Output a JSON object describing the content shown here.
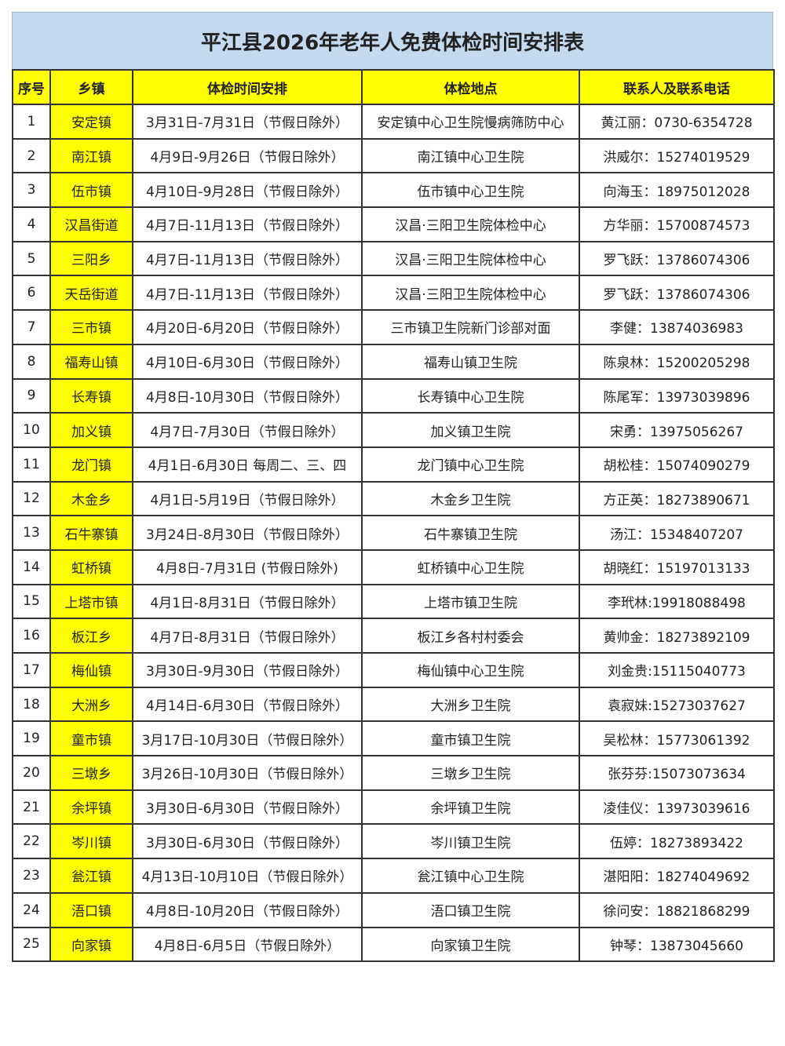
{
  "title": "平江县2026年老年人免费体检时间安排表",
  "headers": [
    "序号",
    "乡镇",
    "体检时间安排",
    "体检地点",
    "联系人及联系电话"
  ],
  "colors": {
    "title_bg": "#c5d9ef",
    "highlight": "#ffff00",
    "border": "#333333"
  },
  "rows": [
    [
      "1",
      "安定镇",
      "3月31日-7月31日（节假日除外）",
      "安定镇中心卫生院慢病筛防中心",
      "黄江丽：0730-6354728"
    ],
    [
      "2",
      "南江镇",
      "4月9日-9月26日（节假日除外）",
      "南江镇中心卫生院",
      "洪威尔：15274019529"
    ],
    [
      "3",
      "伍市镇",
      "4月10日-9月28日（节假日除外）",
      "伍市镇中心卫生院",
      "向海玉：18975012028"
    ],
    [
      "4",
      "汉昌街道",
      "4月7日-11月13日（节假日除外）",
      "汉昌·三阳卫生院体检中心",
      "方华丽：15700874573"
    ],
    [
      "5",
      "三阳乡",
      "4月7日-11月13日（节假日除外）",
      "汉昌·三阳卫生院体检中心",
      "罗飞跃：13786074306"
    ],
    [
      "6",
      "天岳街道",
      "4月7日-11月13日（节假日除外）",
      "汉昌·三阳卫生院体检中心",
      "罗飞跃：13786074306"
    ],
    [
      "7",
      "三市镇",
      "4月20日-6月20日（节假日除外）",
      "三市镇卫生院新门诊部对面",
      "李健：13874036983"
    ],
    [
      "8",
      "福寿山镇",
      "4月10日-6月30日（节假日除外）",
      "福寿山镇卫生院",
      "陈泉林：15200205298"
    ],
    [
      "9",
      "长寿镇",
      "4月8日-10月30日（节假日除外）",
      "长寿镇中心卫生院",
      "陈尾军：13973039896"
    ],
    [
      "10",
      "加义镇",
      "4月7日-7月30日（节假日除外）",
      "加义镇卫生院",
      "宋勇：13975056267"
    ],
    [
      "11",
      "龙门镇",
      "4月1日-6月30日 每周二、三、四",
      "龙门镇中心卫生院",
      "胡松桂：15074090279"
    ],
    [
      "12",
      "木金乡",
      "4月1日-5月19日（节假日除外）",
      "木金乡卫生院",
      "方正英：18273890671"
    ],
    [
      "13",
      "石牛寨镇",
      "3月24日-8月30日（节假日除外）",
      "石牛寨镇卫生院",
      "汤江：15348407207"
    ],
    [
      "14",
      "虹桥镇",
      "4月8日-7月31日 (节假日除外)",
      "虹桥镇中心卫生院",
      "胡晓红：15197013133"
    ],
    [
      "15",
      "上塔市镇",
      "4月1日-8月31日（节假日除外）",
      "上塔市镇卫生院",
      "李玳林:19918088498"
    ],
    [
      "16",
      "板江乡",
      "4月7日-8月31日（节假日除外）",
      "板江乡各村村委会",
      "黄帅金：18273892109"
    ],
    [
      "17",
      "梅仙镇",
      "3月30日-9月30日（节假日除外）",
      "梅仙镇中心卫生院",
      "刘金贵:15115040773"
    ],
    [
      "18",
      "大洲乡",
      "4月14日-6月30日（节假日除外）",
      "大洲乡卫生院",
      "袁寂妹:15273037627"
    ],
    [
      "19",
      "童市镇",
      "3月17日-10月30日（节假日除外）",
      "童市镇卫生院",
      "吴松林：15773061392"
    ],
    [
      "20",
      "三墩乡",
      "3月26日-10月30日（节假日除外）",
      "三墩乡卫生院",
      "张芬芬:15073073634"
    ],
    [
      "21",
      "余坪镇",
      "3月30日-6月30日（节假日除外）",
      "余坪镇卫生院",
      "凌佳仪：13973039616"
    ],
    [
      "22",
      "岑川镇",
      "3月30日-6月30日（节假日除外）",
      "岑川镇卫生院",
      "伍婷：18273893422"
    ],
    [
      "23",
      "瓮江镇",
      "4月13日-10月10日（节假日除外）",
      "瓮江镇中心卫生院",
      "湛阳阳：18274049692"
    ],
    [
      "24",
      "浯口镇",
      "4月8日-10月20日（节假日除外）",
      "浯口镇卫生院",
      "徐问安：18821868299"
    ],
    [
      "25",
      "向家镇",
      "4月8日-6月5日（节假日除外）",
      "向家镇卫生院",
      "钟琴：13873045660"
    ]
  ]
}
